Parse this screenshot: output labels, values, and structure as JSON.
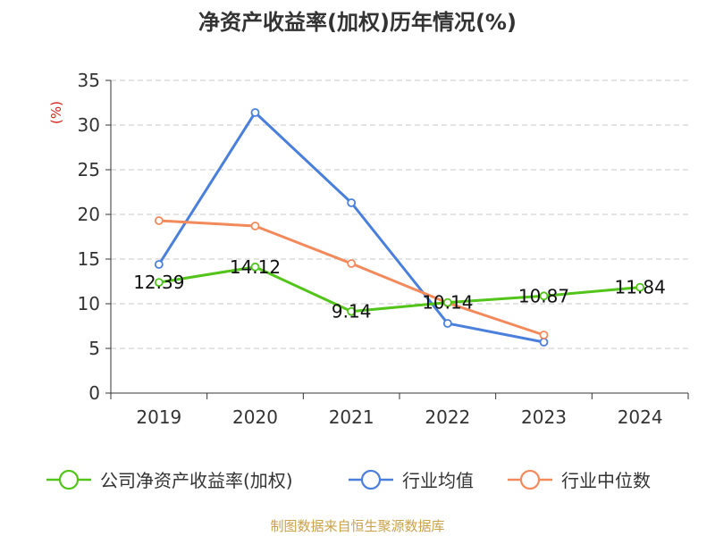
{
  "chart_data": {
    "type": "line",
    "title": "净资产收益率(加权)历年情况(%)",
    "unit_label": "(%)",
    "categories": [
      "2019",
      "2020",
      "2021",
      "2022",
      "2023",
      "2024"
    ],
    "ylim": [
      0,
      35
    ],
    "yticks": [
      "0",
      "5",
      "10",
      "15",
      "20",
      "25",
      "30",
      "35"
    ],
    "grid": true,
    "legend_position": "bottom",
    "series": [
      {
        "name": "公司净资产收益率(加权)",
        "color": "#52c41a",
        "values": [
          12.39,
          14.12,
          9.14,
          10.14,
          10.87,
          11.84
        ],
        "labels": [
          "12.39",
          "14.12",
          "9.14",
          "10.14",
          "10.87",
          "11.84"
        ]
      },
      {
        "name": "行业均值",
        "color": "#4a7fdb",
        "values": [
          14.4,
          31.4,
          21.3,
          7.8,
          5.7,
          null
        ]
      },
      {
        "name": "行业中位数",
        "color": "#f28a5b",
        "values": [
          19.3,
          18.7,
          14.5,
          10.1,
          6.5,
          null
        ]
      }
    ],
    "source": "制图数据来自恒生聚源数据库"
  }
}
